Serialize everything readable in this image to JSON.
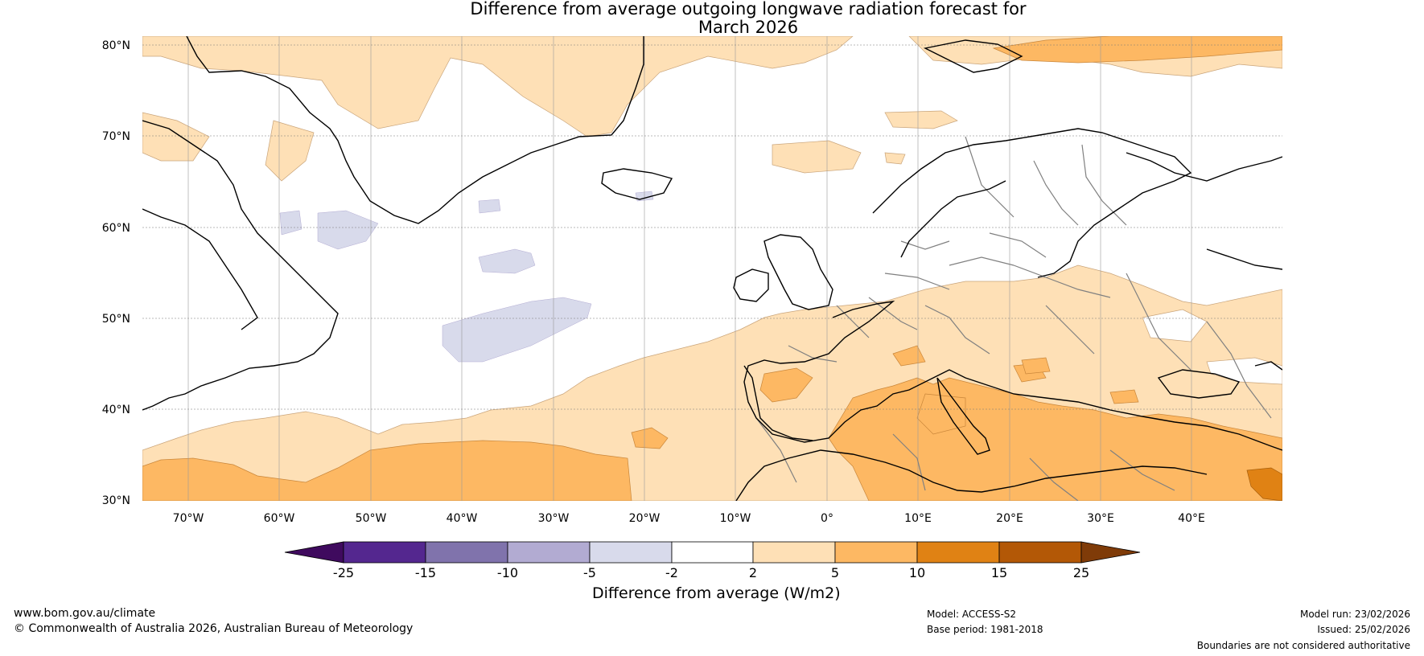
{
  "title": {
    "line1": "Difference from average outgoing longwave radiation forecast for",
    "line2": "March 2026"
  },
  "map": {
    "lat_labels": [
      "80°N",
      "70°N",
      "60°N",
      "50°N",
      "40°N",
      "30°N"
    ],
    "lon_labels": [
      "70°W",
      "60°W",
      "50°W",
      "40°W",
      "30°W",
      "20°W",
      "10°W",
      "0°",
      "10°E",
      "20°E",
      "30°E",
      "40°E"
    ],
    "lon_range": [
      -75,
      50
    ],
    "lat_range": [
      30,
      81
    ],
    "legend_colors": {
      "neg25": "#3f0a5e",
      "neg25_15": "#54278f",
      "neg15_10": "#8073ac",
      "neg10_5": "#b2abd2",
      "neg5_2": "#d8daeb",
      "neutral": "#ffffff",
      "pos2_5": "#fee0b6",
      "pos5_10": "#fdb863",
      "pos10_15": "#e08214",
      "pos15_25": "#b35806",
      "pos25": "#7f3b08"
    }
  },
  "colorbar": {
    "ticks": [
      "-25",
      "-15",
      "-10",
      "-5",
      "-2",
      "2",
      "5",
      "10",
      "15",
      "25"
    ],
    "title": "Difference from average (W/m2)"
  },
  "footer": {
    "site": "www.bom.gov.au/climate",
    "copyright": "© Commonwealth of Australia 2026, Australian Bureau of Meteorology",
    "model": "Model: ACCESS-S2",
    "base_period": "Base period: 1981-2018",
    "model_run": "Model run: 23/02/2026",
    "issued": "Issued: 25/02/2026",
    "disclaimer": "Boundaries are not considered authoritative"
  }
}
